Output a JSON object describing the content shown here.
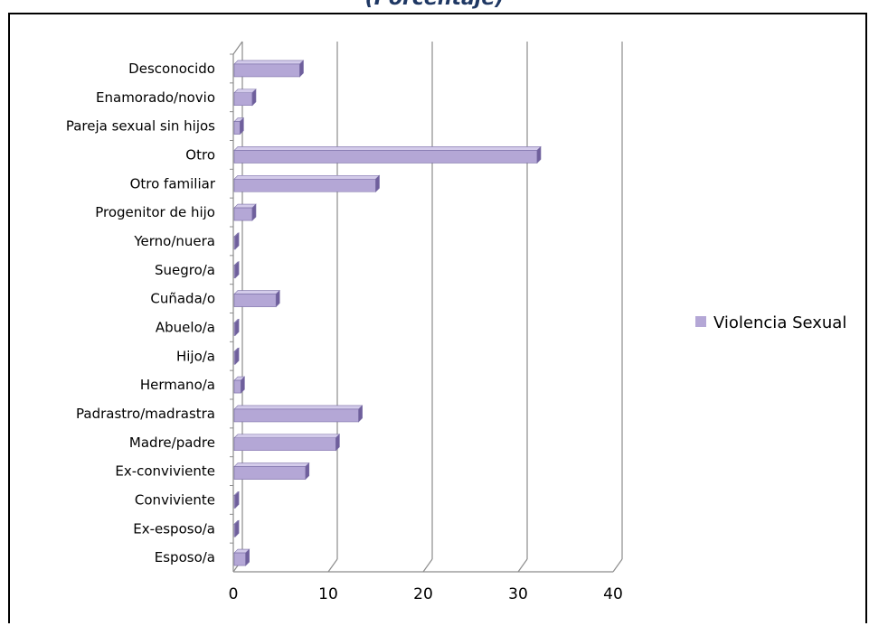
{
  "chart_data": {
    "type": "bar",
    "orientation": "horizontal",
    "title": "(Porcentaje)",
    "categories": [
      "Desconocido",
      "Enamorado/novio",
      "Pareja sexual sin hijos",
      "Otro",
      "Otro familiar",
      "Progenitor de hijo",
      "Yerno/nuera",
      "Suegro/a",
      "Cuñada/o",
      "Abuelo/a",
      "Hijo/a",
      "Hermano/a",
      "Padrastro/madrastra",
      "Madre/padre",
      "Ex-conviviente",
      "Conviviente",
      "Ex-esposo/a",
      "Esposo/a"
    ],
    "series": [
      {
        "name": "Violencia Sexual",
        "color": "#b4a7d6",
        "values": [
          7.0,
          2.0,
          0.7,
          32.0,
          15.0,
          2.0,
          0.2,
          0.2,
          4.5,
          0.2,
          0.2,
          0.8,
          13.2,
          10.8,
          7.6,
          0.2,
          0.2,
          1.3
        ]
      }
    ],
    "xlim": [
      0,
      40
    ],
    "xticks": [
      "0",
      "10",
      "20",
      "30",
      "40"
    ],
    "grid": true,
    "style": "3d",
    "legend_position": "right"
  }
}
